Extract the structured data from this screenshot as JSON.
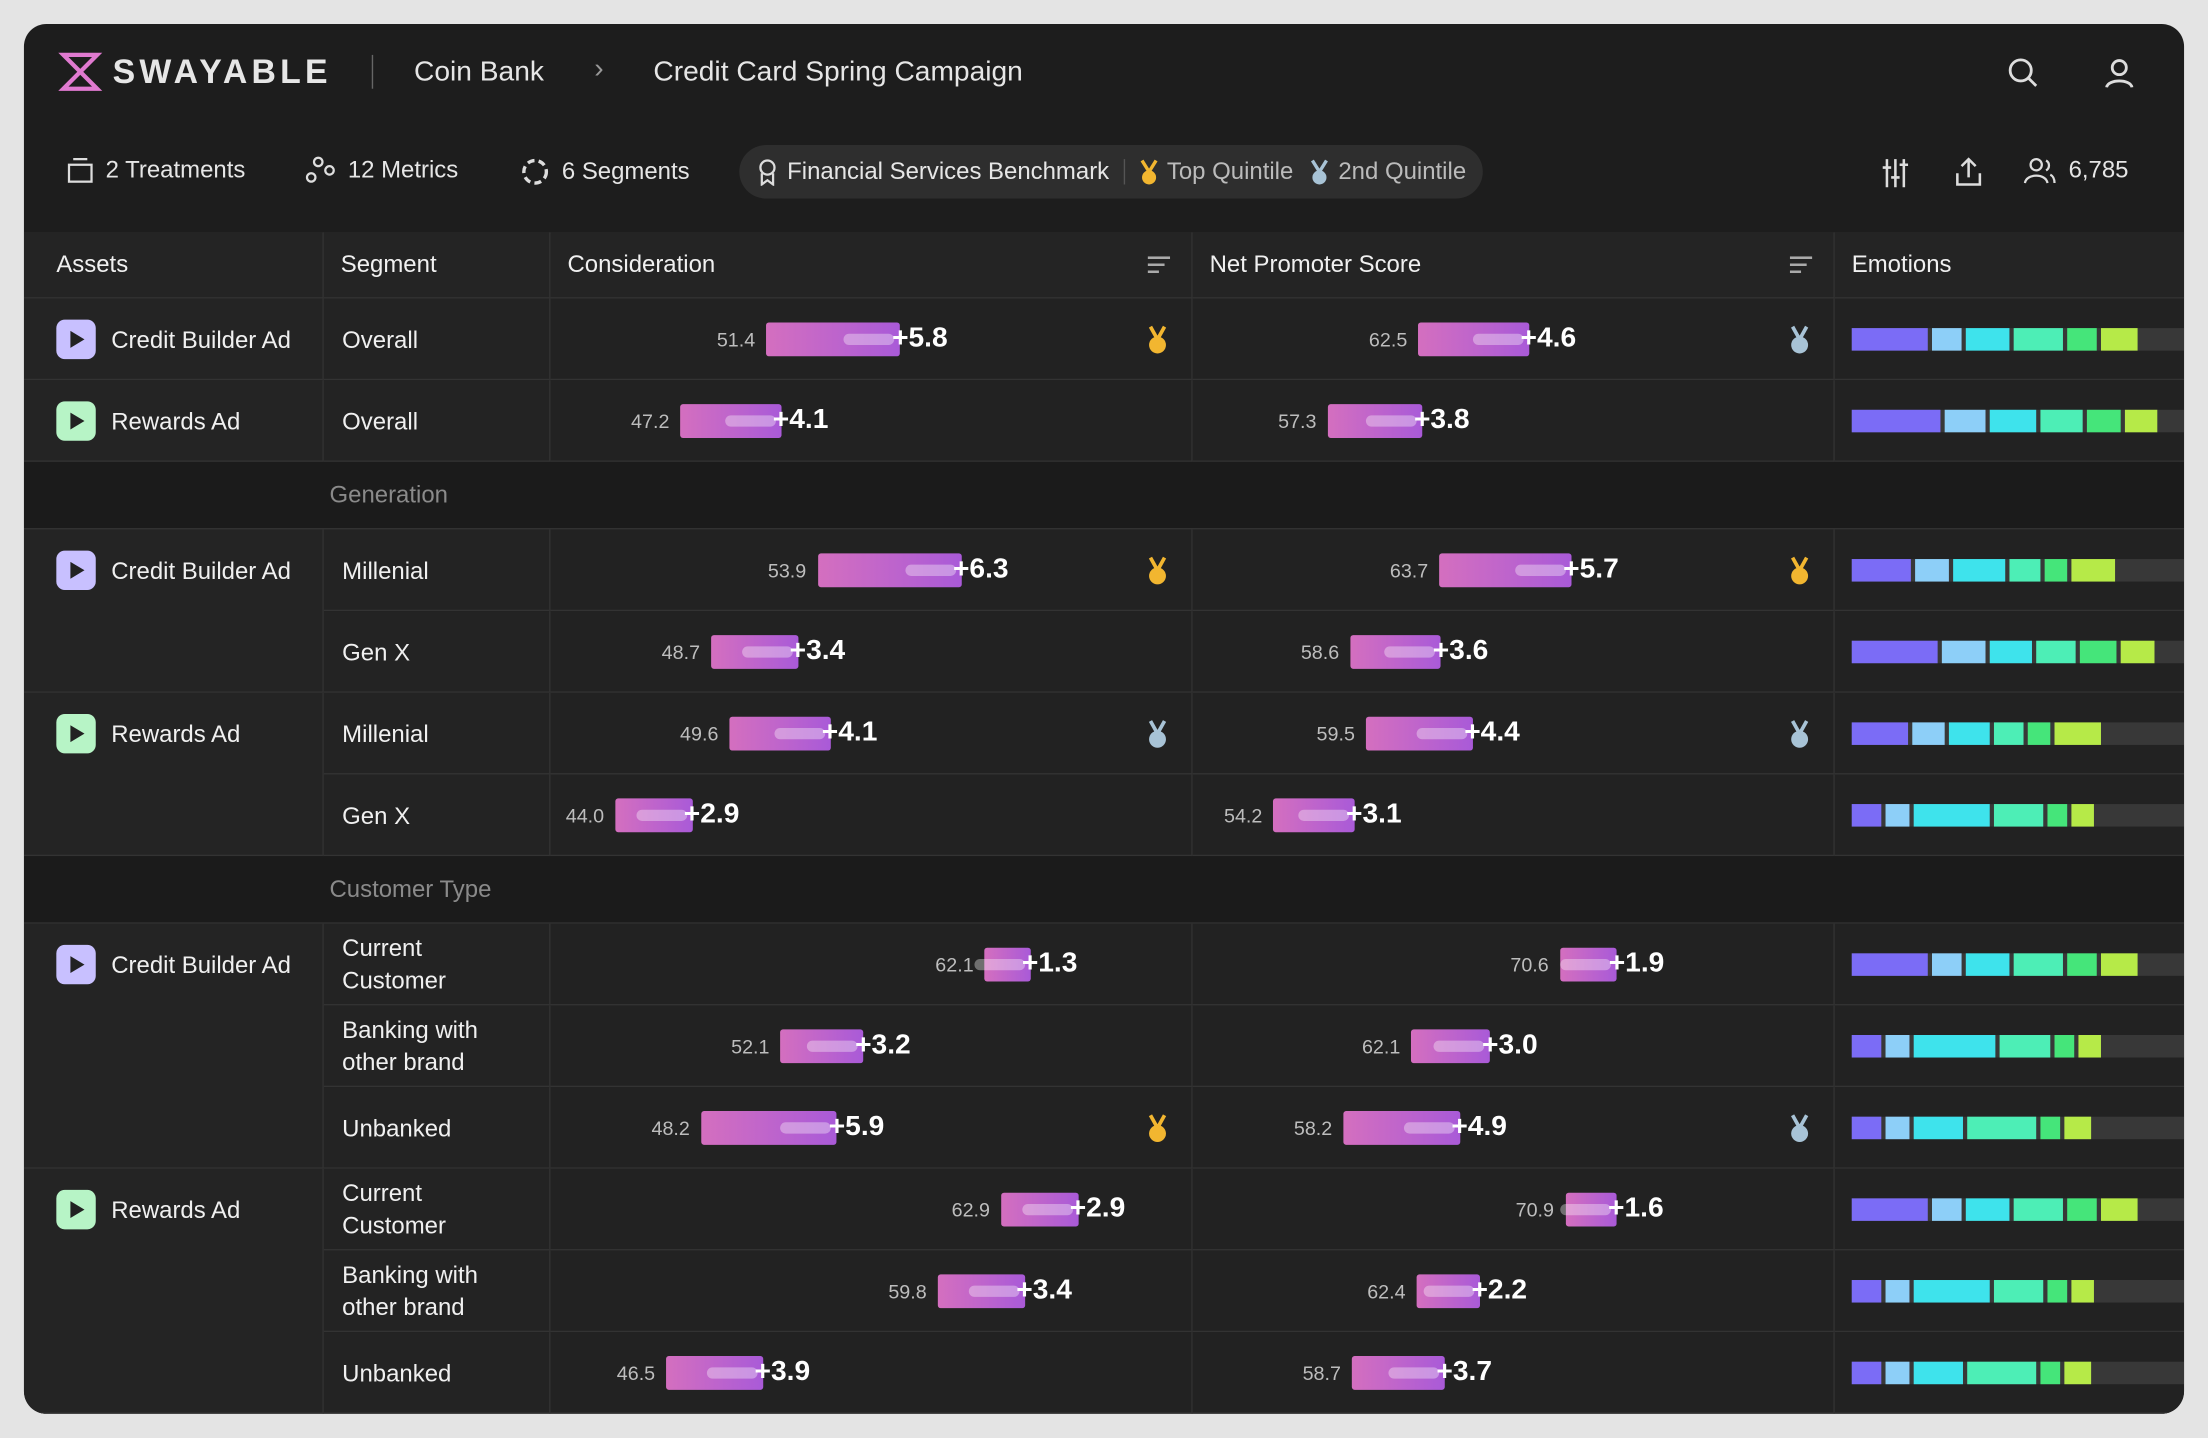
{
  "header": {
    "brand": "SWAYABLE",
    "breadcrumb": [
      "Coin Bank",
      "Credit Card Spring Campaign"
    ]
  },
  "toolbar": {
    "treatments": "2 Treatments",
    "metrics": "12 Metrics",
    "segments": "6 Segments",
    "benchmark": "Financial Services Benchmark",
    "top": "Top Quintile",
    "second": "2nd Quintile",
    "respondents": "6,785"
  },
  "table": {
    "columns": [
      "Assets",
      "Segment",
      "Consideration",
      "Net Promoter Score",
      "Emotions"
    ],
    "emotion_colors": [
      "#7b6cf6",
      "#8dcff8",
      "#3ee3ec",
      "#4deeb6",
      "#45e57a",
      "#b6ea48"
    ],
    "sections": [
      {
        "groups": [
          {
            "asset": "Credit Builder Ad",
            "icon": "#c8c0ff",
            "rows": [
              {
                "segment": "Overall",
                "consideration": {
                  "base": 51.4,
                  "lift": {
                    "value": 5.8,
                    "label": "+5.8"
                  },
                  "medal": "gold"
                },
                "nps": {
                  "base": 62.5,
                  "lift": {
                    "value": 4.6,
                    "label": "+4.6"
                  },
                  "medal": "silver"
                },
                "emotions": [
                  23,
                  9,
                  13,
                  15,
                  9,
                  11
                ]
              }
            ]
          },
          {
            "asset": "Rewards Ad",
            "icon": "#b7f4c6",
            "rows": [
              {
                "segment": "Overall",
                "consideration": {
                  "base": 47.2,
                  "lift": {
                    "value": 4.1,
                    "label": "+4.1"
                  }
                },
                "nps": {
                  "base": 57.3,
                  "lift": {
                    "value": 3.8,
                    "label": "+3.8"
                  }
                },
                "emotions": [
                  27,
                  12,
                  14,
                  13,
                  10,
                  10
                ]
              }
            ]
          }
        ]
      },
      {
        "label": "Generation",
        "groups": [
          {
            "asset": "Credit Builder Ad",
            "icon": "#c8c0ff",
            "rows": [
              {
                "segment": "Millenial",
                "consideration": {
                  "base": 53.9,
                  "lift": {
                    "value": 6.3,
                    "label": "+6.3"
                  },
                  "medal": "gold"
                },
                "nps": {
                  "base": 63.7,
                  "lift": {
                    "value": 5.7,
                    "label": "+5.7"
                  },
                  "medal": "gold"
                },
                "emotions": [
                  18,
                  10,
                  16,
                  9,
                  7,
                  13
                ]
              },
              {
                "segment": "Gen X",
                "consideration": {
                  "base": 48.7,
                  "lift": {
                    "value": 3.4,
                    "label": "+3.4"
                  }
                },
                "nps": {
                  "base": 58.6,
                  "lift": {
                    "value": 3.6,
                    "label": "+3.6"
                  }
                },
                "emotions": [
                  26,
                  13,
                  13,
                  12,
                  11,
                  10
                ]
              }
            ]
          },
          {
            "asset": "Rewards Ad",
            "icon": "#b7f4c6",
            "rows": [
              {
                "segment": "Millenial",
                "consideration": {
                  "base": 49.6,
                  "lift": {
                    "value": 4.1,
                    "label": "+4.1"
                  },
                  "medal": "silver"
                },
                "nps": {
                  "base": 59.5,
                  "lift": {
                    "value": 4.4,
                    "label": "+4.4"
                  },
                  "medal": "silver"
                },
                "emotions": [
                  17,
                  10,
                  12,
                  9,
                  7,
                  14
                ]
              },
              {
                "segment": "Gen X",
                "consideration": {
                  "base": {
                    "value": 44,
                    "label": "44.0"
                  },
                  "lift": {
                    "value": 2.9,
                    "label": "+2.9"
                  }
                },
                "nps": {
                  "base": 54.2,
                  "lift": {
                    "value": 3.1,
                    "label": "+3.1"
                  }
                },
                "emotions": [
                  9,
                  7,
                  23,
                  15,
                  6,
                  7
                ]
              }
            ]
          }
        ]
      },
      {
        "label": "Customer Type",
        "groups": [
          {
            "asset": "Credit Builder Ad",
            "icon": "#c8c0ff",
            "rows": [
              {
                "segment": "Current Customer",
                "consideration": {
                  "base": 62.1,
                  "lift": {
                    "value": 1.3,
                    "label": "+1.3"
                  }
                },
                "nps": {
                  "base": 70.6,
                  "lift": {
                    "value": 1.9,
                    "label": "+1.9"
                  }
                },
                "emotions": [
                  23,
                  9,
                  13,
                  15,
                  9,
                  11
                ]
              },
              {
                "segment": "Banking with other brand",
                "consideration": {
                  "base": 52.1,
                  "lift": {
                    "value": 3.2,
                    "label": "+3.2"
                  }
                },
                "nps": {
                  "base": 62.1,
                  "lift": {
                    "value": 3,
                    "label": "+3.0"
                  }
                },
                "emotions": [
                  9,
                  7,
                  25,
                  15,
                  6,
                  7
                ]
              },
              {
                "segment": "Unbanked",
                "consideration": {
                  "base": 48.2,
                  "lift": {
                    "value": 5.9,
                    "label": "+5.9"
                  },
                  "medal": "gold"
                },
                "nps": {
                  "base": 58.2,
                  "lift": {
                    "value": 4.9,
                    "label": "+4.9"
                  },
                  "medal": "silver"
                },
                "emotions": [
                  9,
                  7,
                  15,
                  21,
                  6,
                  8
                ]
              }
            ]
          },
          {
            "asset": "Rewards Ad",
            "icon": "#b7f4c6",
            "rows": [
              {
                "segment": "Current Customer",
                "consideration": {
                  "base": 62.9,
                  "lift": {
                    "value": 2.9,
                    "label": "+2.9"
                  }
                },
                "nps": {
                  "base": 70.9,
                  "lift": {
                    "value": 1.6,
                    "label": "+1.6"
                  }
                },
                "emotions": [
                  23,
                  9,
                  13,
                  15,
                  9,
                  11
                ]
              },
              {
                "segment": "Banking with other brand",
                "consideration": {
                  "base": 59.8,
                  "lift": {
                    "value": 3.4,
                    "label": "+3.4"
                  }
                },
                "nps": {
                  "base": 62.4,
                  "lift": {
                    "value": 2.2,
                    "label": "+2.2"
                  }
                },
                "emotions": [
                  9,
                  7,
                  23,
                  15,
                  6,
                  7
                ]
              },
              {
                "segment": "Unbanked",
                "consideration": {
                  "base": 46.5,
                  "lift": {
                    "value": 3.9,
                    "label": "+3.9"
                  }
                },
                "nps": {
                  "base": 58.7,
                  "lift": {
                    "value": 3.7,
                    "label": "+3.7"
                  }
                },
                "emotions": [
                  9,
                  7,
                  15,
                  21,
                  6,
                  8
                ]
              }
            ]
          }
        ]
      }
    ]
  }
}
